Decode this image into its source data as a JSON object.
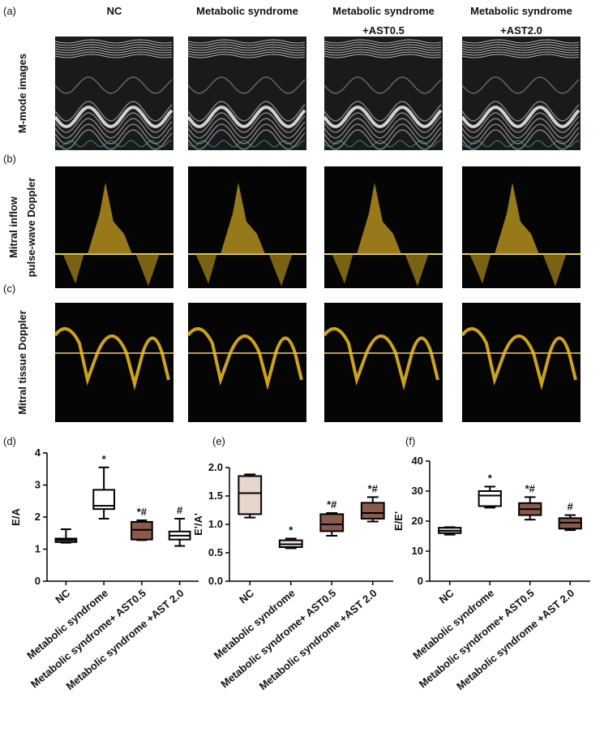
{
  "figure": {
    "panel_labels": [
      "(a)",
      "(b)",
      "(c)"
    ],
    "column_headers": [
      [
        "NC"
      ],
      [
        "Metabolic syndrome"
      ],
      [
        "Metabolic syndrome",
        "+AST0.5"
      ],
      [
        "Metabolic syndrome",
        "+AST2.0"
      ]
    ],
    "row_labels": [
      [
        "M-mode images"
      ],
      [
        "Mitral inflow",
        "pulse-wave Doppler"
      ],
      [
        "Mitral tissue Doppler"
      ]
    ]
  },
  "chart_data": [
    {
      "type": "box",
      "panel_label": "(d)",
      "y_label": "E/A",
      "categories": [
        "NC",
        "Metabolic syndrome",
        "Metabolic syndrome+ AST0.5",
        "Metabolic syndrome +AST 2.0"
      ],
      "boxes": [
        {
          "min": 1.2,
          "q1": 1.22,
          "median": 1.28,
          "q3": 1.33,
          "max": 1.62,
          "color": "#ffffff"
        },
        {
          "min": 1.95,
          "q1": 2.25,
          "median": 2.35,
          "q3": 2.85,
          "max": 3.55,
          "color": "#ffffff",
          "annotation": "*"
        },
        {
          "min": 1.28,
          "q1": 1.3,
          "median": 1.6,
          "q3": 1.85,
          "max": 1.9,
          "color": "#8a5a4c",
          "annotation": "*#"
        },
        {
          "min": 1.1,
          "q1": 1.3,
          "median": 1.42,
          "q3": 1.55,
          "max": 1.95,
          "color": "#ffffff",
          "annotation": "#"
        }
      ],
      "ylim": [
        0,
        4
      ],
      "yticks": [
        0,
        1,
        2,
        3,
        4
      ]
    },
    {
      "type": "box",
      "panel_label": "(e)",
      "y_label": "E'/A'",
      "categories": [
        "NC",
        "Metabolic syndrome",
        "Metabolic syndrome+ AST0.5",
        "Metabolic syndrome +AST 2.0"
      ],
      "boxes": [
        {
          "min": 1.12,
          "q1": 1.18,
          "median": 1.55,
          "q3": 1.85,
          "max": 1.88,
          "color": "#e6d6cc"
        },
        {
          "min": 0.58,
          "q1": 0.6,
          "median": 0.65,
          "q3": 0.72,
          "max": 0.75,
          "color": "#ece2d6",
          "annotation": "*"
        },
        {
          "min": 0.8,
          "q1": 0.88,
          "median": 1.0,
          "q3": 1.18,
          "max": 1.2,
          "color": "#8a5a4c",
          "annotation": "*#"
        },
        {
          "min": 1.05,
          "q1": 1.1,
          "median": 1.2,
          "q3": 1.38,
          "max": 1.48,
          "color": "#8a5a4c",
          "annotation": "*#"
        }
      ],
      "ylim": [
        0,
        2
      ],
      "yticks": [
        {
          "value": 0,
          "label": "0.0"
        },
        0.5,
        {
          "value": 1,
          "label": "1.0"
        },
        1.5,
        {
          "value": 2,
          "label": "2.0"
        }
      ]
    },
    {
      "type": "box",
      "panel_label": "(f)",
      "y_label": "E/E'",
      "categories": [
        "NC",
        "Metabolic syndrome",
        "Metabolic syndrome+ AST0.5",
        "Metabolic syndrome +AST 2.0"
      ],
      "boxes": [
        {
          "min": 15.5,
          "q1": 16,
          "median": 16.8,
          "q3": 17.8,
          "max": 18,
          "color": "#e6d6cc"
        },
        {
          "min": 24.5,
          "q1": 25,
          "median": 28.5,
          "q3": 30,
          "max": 31.5,
          "color": "#ffffff",
          "annotation": "*"
        },
        {
          "min": 20.5,
          "q1": 22,
          "median": 24,
          "q3": 26,
          "max": 28,
          "color": "#8a5a4c",
          "annotation": "*#"
        },
        {
          "min": 17,
          "q1": 17.5,
          "median": 19.5,
          "q3": 21,
          "max": 22,
          "color": "#8a5a4c",
          "annotation": "#"
        }
      ],
      "ylim": [
        0,
        40
      ],
      "yticks": [
        0,
        10,
        20,
        30,
        40
      ]
    }
  ]
}
